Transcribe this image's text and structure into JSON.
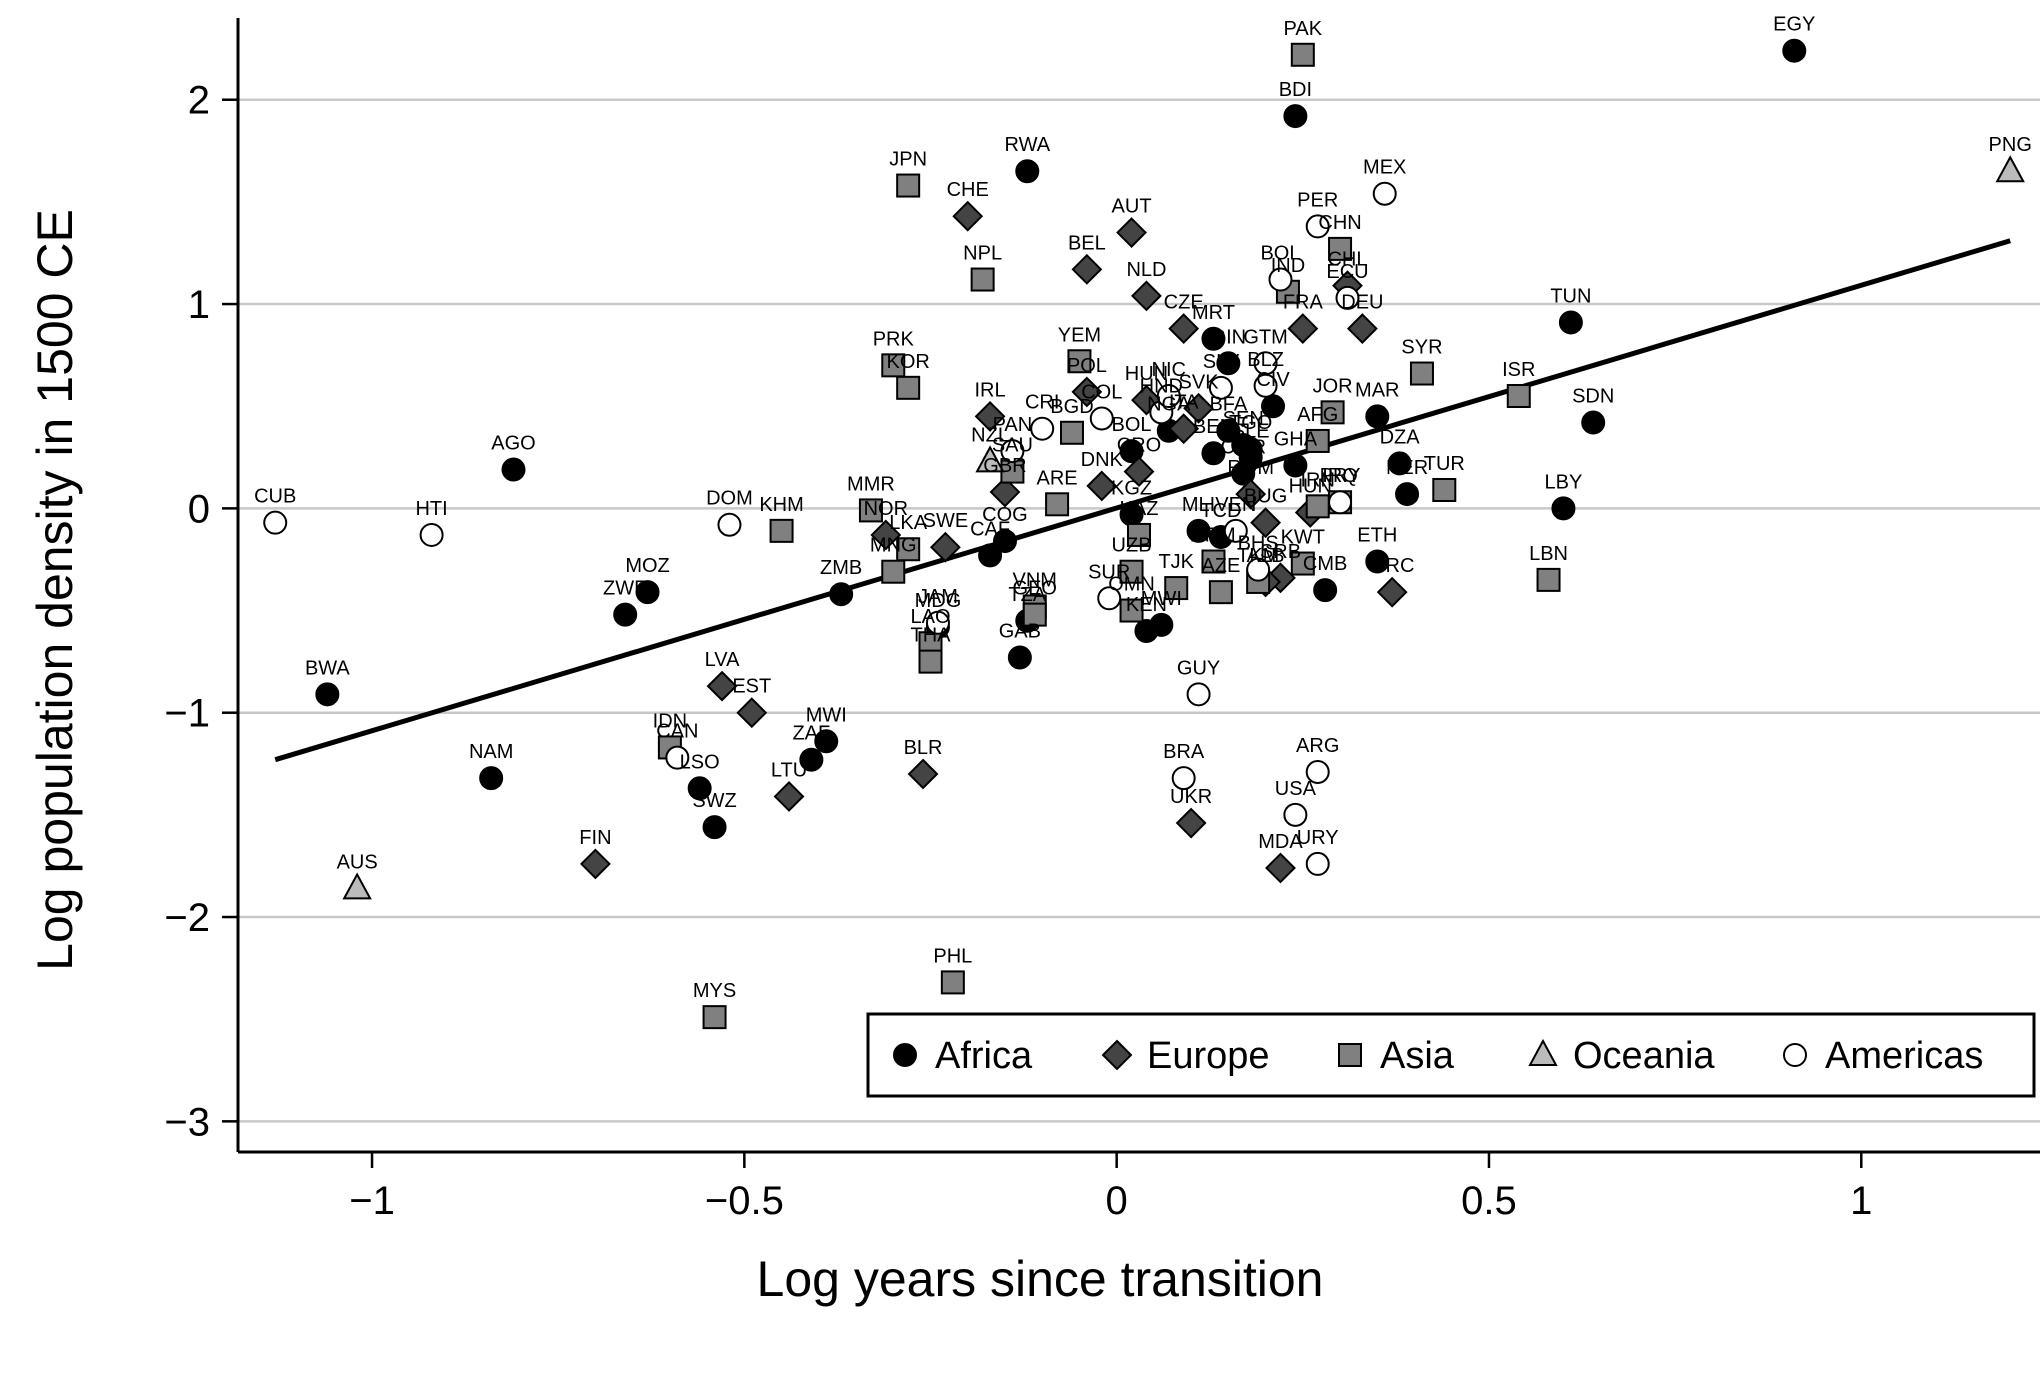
{
  "chart_data": {
    "type": "scatter",
    "xlabel": "Log years since transition",
    "ylabel": "Log population density in 1500 CE",
    "xlim": [
      -1.18,
      1.24
    ],
    "ylim": [
      -3.15,
      2.4
    ],
    "xticks": [
      -1,
      -0.5,
      0,
      0.5,
      1
    ],
    "xtick_labels": [
      "−1",
      "−0.5",
      "0",
      "0.5",
      "1"
    ],
    "yticks": [
      -3,
      -2,
      -1,
      0,
      1,
      2
    ],
    "ytick_labels": [
      "−3",
      "−2",
      "−1",
      "0",
      "1",
      "2"
    ],
    "grid": "horizontal",
    "legend_position": "bottom-right",
    "fit_line": {
      "x": [
        -1.13,
        1.2
      ],
      "y": [
        -1.23,
        1.31
      ]
    },
    "series": [
      {
        "name": "Africa",
        "marker": "circle",
        "fill": "#000000",
        "points": [
          {
            "label": "EGY",
            "x": 0.91,
            "y": 2.24
          },
          {
            "label": "BDI",
            "x": 0.24,
            "y": 1.92
          },
          {
            "label": "RWA",
            "x": -0.12,
            "y": 1.65
          },
          {
            "label": "TUN",
            "x": 0.61,
            "y": 0.91
          },
          {
            "label": "SDN",
            "x": 0.64,
            "y": 0.42
          },
          {
            "label": "LBY",
            "x": 0.6,
            "y": 0.0
          },
          {
            "label": "MAR",
            "x": 0.35,
            "y": 0.45
          },
          {
            "label": "DZA",
            "x": 0.38,
            "y": 0.22
          },
          {
            "label": "NER",
            "x": 0.39,
            "y": 0.07
          },
          {
            "label": "ETH",
            "x": 0.35,
            "y": -0.26
          },
          {
            "label": "CMB",
            "x": 0.28,
            "y": -0.4
          },
          {
            "label": "AGO",
            "x": -0.81,
            "y": 0.19
          },
          {
            "label": "MOZ",
            "x": -0.63,
            "y": -0.41
          },
          {
            "label": "ZWE",
            "x": -0.66,
            "y": -0.52
          },
          {
            "label": "BWA",
            "x": -1.06,
            "y": -0.91
          },
          {
            "label": "NAM",
            "x": -0.84,
            "y": -1.32
          },
          {
            "label": "ZMB",
            "x": -0.37,
            "y": -0.42
          },
          {
            "label": "MWI",
            "x": -0.39,
            "y": -1.14
          },
          {
            "label": "ZAF",
            "x": -0.41,
            "y": -1.23
          },
          {
            "label": "LSO",
            "x": -0.56,
            "y": -1.37
          },
          {
            "label": "SWZ",
            "x": -0.54,
            "y": -1.56
          },
          {
            "label": "COG",
            "x": -0.15,
            "y": -0.16
          },
          {
            "label": "CAF",
            "x": -0.17,
            "y": -0.23
          },
          {
            "label": "MDG",
            "x": -0.24,
            "y": -0.58
          },
          {
            "label": "GAB",
            "x": -0.13,
            "y": -0.73
          },
          {
            "label": "TZA",
            "x": -0.12,
            "y": -0.55
          },
          {
            "label": "KEN",
            "x": 0.04,
            "y": -0.6
          },
          {
            "label": "MWI",
            "x": 0.06,
            "y": -0.57
          },
          {
            "label": "MLI",
            "x": 0.11,
            "y": -0.11
          },
          {
            "label": "TCD",
            "x": 0.14,
            "y": -0.14
          },
          {
            "label": "KGZ",
            "x": 0.02,
            "y": -0.03
          },
          {
            "label": "BOL",
            "x": 0.02,
            "y": 0.28
          },
          {
            "label": "NGA",
            "x": 0.07,
            "y": 0.38
          },
          {
            "label": "MRT",
            "x": 0.13,
            "y": 0.83
          },
          {
            "label": "GIN",
            "x": 0.15,
            "y": 0.71
          },
          {
            "label": "BEN",
            "x": 0.13,
            "y": 0.27
          },
          {
            "label": "BFA",
            "x": 0.15,
            "y": 0.38
          },
          {
            "label": "SEN",
            "x": 0.17,
            "y": 0.31
          },
          {
            "label": "GHA",
            "x": 0.24,
            "y": 0.21
          },
          {
            "label": "CIV",
            "x": 0.21,
            "y": 0.5
          },
          {
            "label": "TGO",
            "x": 0.18,
            "y": 0.29
          },
          {
            "label": "SLE",
            "x": 0.18,
            "y": 0.25
          },
          {
            "label": "CMR",
            "x": 0.17,
            "y": 0.17
          }
        ]
      },
      {
        "name": "Europe",
        "marker": "diamond",
        "fill": "#444444",
        "points": [
          {
            "label": "CHE",
            "x": -0.2,
            "y": 1.43
          },
          {
            "label": "AUT",
            "x": 0.02,
            "y": 1.35
          },
          {
            "label": "BEL",
            "x": -0.04,
            "y": 1.17
          },
          {
            "label": "NLD",
            "x": 0.04,
            "y": 1.04
          },
          {
            "label": "CZE",
            "x": 0.09,
            "y": 0.88
          },
          {
            "label": "FRA",
            "x": 0.25,
            "y": 0.88
          },
          {
            "label": "DEU",
            "x": 0.33,
            "y": 0.88
          },
          {
            "label": "CHL",
            "x": 0.31,
            "y": 1.09
          },
          {
            "label": "IRL",
            "x": -0.17,
            "y": 0.45
          },
          {
            "label": "POL",
            "x": -0.04,
            "y": 0.57
          },
          {
            "label": "HUN",
            "x": 0.04,
            "y": 0.53
          },
          {
            "label": "SVK",
            "x": 0.11,
            "y": 0.49
          },
          {
            "label": "ITA",
            "x": 0.09,
            "y": 0.39
          },
          {
            "label": "DNK",
            "x": -0.02,
            "y": 0.11
          },
          {
            "label": "CRO",
            "x": 0.03,
            "y": 0.18
          },
          {
            "label": "GBR",
            "x": -0.15,
            "y": 0.08
          },
          {
            "label": "NOR",
            "x": -0.31,
            "y": -0.13
          },
          {
            "label": "SWE",
            "x": -0.23,
            "y": -0.19
          },
          {
            "label": "ROM",
            "x": 0.18,
            "y": 0.07
          },
          {
            "label": "BUG",
            "x": 0.2,
            "y": -0.07
          },
          {
            "label": "SRB",
            "x": 0.22,
            "y": -0.34
          },
          {
            "label": "ALB",
            "x": 0.2,
            "y": -0.36
          },
          {
            "label": "HUN",
            "x": 0.26,
            "y": -0.02
          },
          {
            "label": "GRC",
            "x": 0.37,
            "y": -0.41
          },
          {
            "label": "LVA",
            "x": -0.53,
            "y": -0.87
          },
          {
            "label": "EST",
            "x": -0.49,
            "y": -1.0
          },
          {
            "label": "LTU",
            "x": -0.44,
            "y": -1.41
          },
          {
            "label": "FIN",
            "x": -0.7,
            "y": -1.74
          },
          {
            "label": "BLR",
            "x": -0.26,
            "y": -1.3
          },
          {
            "label": "UKR",
            "x": 0.1,
            "y": -1.54
          },
          {
            "label": "MDA",
            "x": 0.22,
            "y": -1.76
          }
        ]
      },
      {
        "name": "Asia",
        "marker": "square",
        "fill": "#808080",
        "points": [
          {
            "label": "PAK",
            "x": 0.25,
            "y": 2.22
          },
          {
            "label": "JPN",
            "x": -0.28,
            "y": 1.58
          },
          {
            "label": "NPL",
            "x": -0.18,
            "y": 1.12
          },
          {
            "label": "CHN",
            "x": 0.3,
            "y": 1.27
          },
          {
            "label": "IND",
            "x": 0.23,
            "y": 1.06
          },
          {
            "label": "SYR",
            "x": 0.41,
            "y": 0.66
          },
          {
            "label": "ISR",
            "x": 0.54,
            "y": 0.55
          },
          {
            "label": "JOR",
            "x": 0.29,
            "y": 0.47
          },
          {
            "label": "AFG",
            "x": 0.27,
            "y": 0.33
          },
          {
            "label": "IRQ",
            "x": 0.3,
            "y": 0.03
          },
          {
            "label": "IRN",
            "x": 0.27,
            "y": 0.01
          },
          {
            "label": "TUR",
            "x": 0.44,
            "y": 0.09
          },
          {
            "label": "LBN",
            "x": 0.58,
            "y": -0.35
          },
          {
            "label": "PRK",
            "x": -0.3,
            "y": 0.7
          },
          {
            "label": "KOR",
            "x": -0.28,
            "y": 0.59
          },
          {
            "label": "YEM",
            "x": -0.05,
            "y": 0.72
          },
          {
            "label": "BGD",
            "x": -0.06,
            "y": 0.37
          },
          {
            "label": "SAU",
            "x": -0.14,
            "y": 0.18
          },
          {
            "label": "ARE",
            "x": -0.08,
            "y": 0.02
          },
          {
            "label": "KHM",
            "x": -0.45,
            "y": -0.11
          },
          {
            "label": "MMR",
            "x": -0.33,
            "y": -0.01
          },
          {
            "label": "LKA",
            "x": -0.28,
            "y": -0.2
          },
          {
            "label": "MNG",
            "x": -0.3,
            "y": -0.31
          },
          {
            "label": "VNM",
            "x": -0.11,
            "y": -0.48
          },
          {
            "label": "GEO",
            "x": -0.11,
            "y": -0.52
          },
          {
            "label": "UZB",
            "x": 0.02,
            "y": -0.31
          },
          {
            "label": "KAZ",
            "x": 0.03,
            "y": -0.13
          },
          {
            "label": "TJK",
            "x": 0.08,
            "y": -0.39
          },
          {
            "label": "ARM",
            "x": 0.13,
            "y": -0.26
          },
          {
            "label": "AZE",
            "x": 0.14,
            "y": -0.41
          },
          {
            "label": "TKM",
            "x": 0.19,
            "y": -0.36
          },
          {
            "label": "KWT",
            "x": 0.25,
            "y": -0.27
          },
          {
            "label": "OMN",
            "x": 0.02,
            "y": -0.5
          },
          {
            "label": "LAO",
            "x": -0.25,
            "y": -0.66
          },
          {
            "label": "THA",
            "x": -0.25,
            "y": -0.75
          },
          {
            "label": "IDN",
            "x": -0.6,
            "y": -1.17
          },
          {
            "label": "MYS",
            "x": -0.54,
            "y": -2.49
          },
          {
            "label": "PHL",
            "x": -0.22,
            "y": -2.32
          }
        ]
      },
      {
        "name": "Oceania",
        "marker": "triangle",
        "fill": "#bbbbbb",
        "points": [
          {
            "label": "PNG",
            "x": 1.2,
            "y": 1.65
          },
          {
            "label": "NZL",
            "x": -0.17,
            "y": 0.23
          },
          {
            "label": "AUS",
            "x": -1.02,
            "y": -1.86
          }
        ]
      },
      {
        "name": "Americas",
        "marker": "circle-open",
        "fill": "#ffffff",
        "points": [
          {
            "label": "MEX",
            "x": 0.36,
            "y": 1.54
          },
          {
            "label": "PER",
            "x": 0.27,
            "y": 1.38
          },
          {
            "label": "BOL",
            "x": 0.22,
            "y": 1.12
          },
          {
            "label": "ECU",
            "x": 0.31,
            "y": 1.03
          },
          {
            "label": "GTM",
            "x": 0.2,
            "y": 0.71
          },
          {
            "label": "BLZ",
            "x": 0.2,
            "y": 0.6
          },
          {
            "label": "SLV",
            "x": 0.14,
            "y": 0.59
          },
          {
            "label": "HND",
            "x": 0.06,
            "y": 0.47
          },
          {
            "label": "NIC",
            "x": 0.07,
            "y": 0.55
          },
          {
            "label": "CRI",
            "x": -0.1,
            "y": 0.39
          },
          {
            "label": "COL",
            "x": -0.02,
            "y": 0.44
          },
          {
            "label": "PAN",
            "x": -0.14,
            "y": 0.28
          },
          {
            "label": "VEN",
            "x": 0.16,
            "y": -0.11
          },
          {
            "label": "PRY",
            "x": 0.3,
            "y": 0.03
          },
          {
            "label": "CUB",
            "x": -1.13,
            "y": -0.07
          },
          {
            "label": "HTI",
            "x": -0.92,
            "y": -0.13
          },
          {
            "label": "DOM",
            "x": -0.52,
            "y": -0.08
          },
          {
            "label": "JAM",
            "x": -0.24,
            "y": -0.56
          },
          {
            "label": "SUR",
            "x": -0.01,
            "y": -0.44
          },
          {
            "label": "GUY",
            "x": 0.11,
            "y": -0.91
          },
          {
            "label": "CAN",
            "x": -0.59,
            "y": -1.22
          },
          {
            "label": "BRA",
            "x": 0.09,
            "y": -1.32
          },
          {
            "label": "ARG",
            "x": 0.27,
            "y": -1.29
          },
          {
            "label": "USA",
            "x": 0.24,
            "y": -1.5
          },
          {
            "label": "URY",
            "x": 0.27,
            "y": -1.74
          },
          {
            "label": "BHS",
            "x": 0.19,
            "y": -0.3
          }
        ]
      }
    ]
  }
}
